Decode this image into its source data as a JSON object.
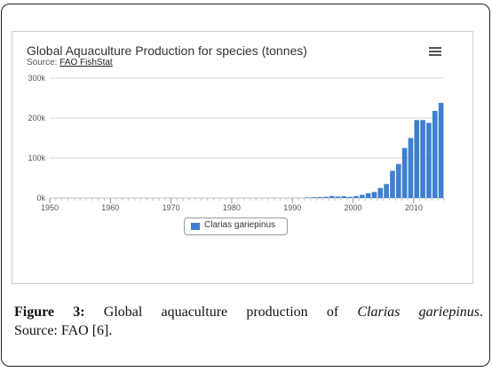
{
  "chart": {
    "title": "Global Aquaculture Production for species (tonnes)",
    "source_prefix": "Source: ",
    "source_link": "FAO FishStat"
  },
  "legend": {
    "label": "Clarias gariepinus"
  },
  "caption": {
    "figure_label": "Figure 3:",
    "text_before": "Global aquaculture production of",
    "species": "Clarias gariepinus",
    "text_after": ".",
    "source_line": "Source: FAO [6]."
  },
  "colors": {
    "bar": "#3d7fd1",
    "grid": "#d8d8d8",
    "axis": "#c0c0c0"
  },
  "chart_data": {
    "type": "bar",
    "title": "Global Aquaculture Production for species (tonnes)",
    "subtitle": "Source: FAO FishStat",
    "xlabel": "",
    "ylabel": "",
    "x_ticks": [
      1950,
      1960,
      1970,
      1980,
      1990,
      2000,
      2010
    ],
    "y_ticks": [
      0,
      100000,
      200000,
      300000
    ],
    "y_tick_labels": [
      "0k",
      "100k",
      "200k",
      "300k"
    ],
    "xlim": [
      1950,
      2014
    ],
    "ylim": [
      0,
      300000
    ],
    "grid": true,
    "legend_position": "bottom-center",
    "categories": [
      1950,
      1951,
      1952,
      1953,
      1954,
      1955,
      1956,
      1957,
      1958,
      1959,
      1960,
      1961,
      1962,
      1963,
      1964,
      1965,
      1966,
      1967,
      1968,
      1969,
      1970,
      1971,
      1972,
      1973,
      1974,
      1975,
      1976,
      1977,
      1978,
      1979,
      1980,
      1981,
      1982,
      1983,
      1984,
      1985,
      1986,
      1987,
      1988,
      1989,
      1990,
      1991,
      1992,
      1993,
      1994,
      1995,
      1996,
      1997,
      1998,
      1999,
      2000,
      2001,
      2002,
      2003,
      2004,
      2005,
      2006,
      2007,
      2008,
      2009,
      2010,
      2011,
      2012,
      2013,
      2014
    ],
    "series": [
      {
        "name": "Clarias gariepinus",
        "values": [
          0,
          0,
          0,
          0,
          0,
          0,
          0,
          0,
          0,
          0,
          0,
          0,
          0,
          0,
          0,
          0,
          0,
          0,
          0,
          0,
          0,
          0,
          0,
          0,
          0,
          0,
          0,
          0,
          0,
          0,
          0,
          0,
          0,
          0,
          0,
          0,
          0,
          0,
          0,
          0,
          0,
          0,
          1500,
          2000,
          2500,
          3000,
          5000,
          3500,
          4500,
          3000,
          5000,
          8000,
          12000,
          15000,
          25000,
          35000,
          68000,
          85000,
          125000,
          150000,
          195000,
          195000,
          188000,
          218000,
          238000
        ]
      }
    ]
  }
}
